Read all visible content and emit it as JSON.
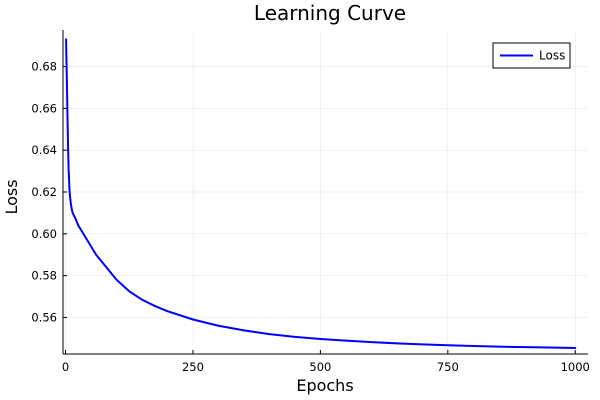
{
  "chart_data": {
    "type": "line",
    "title": "Learning Curve",
    "xlabel": "Epochs",
    "ylabel": "Loss",
    "xlim": [
      -5,
      1025
    ],
    "ylim": [
      0.5425,
      0.6975
    ],
    "xticks": [
      0,
      250,
      500,
      750,
      1000
    ],
    "xtick_labels": [
      "0",
      "250",
      "500",
      "750",
      "1000"
    ],
    "yticks": [
      0.56,
      0.58,
      0.6,
      0.62,
      0.64,
      0.66,
      0.68
    ],
    "ytick_labels": [
      "0.56",
      "0.58",
      "0.60",
      "0.62",
      "0.64",
      "0.66",
      "0.68"
    ],
    "grid": true,
    "legend": "top-right",
    "series": [
      {
        "name": "Loss",
        "color": "#0000ff",
        "x": [
          1,
          2,
          3,
          4,
          5,
          6,
          7,
          8,
          10,
          12,
          14,
          16,
          18,
          20,
          25,
          30,
          40,
          50,
          60,
          70,
          80,
          90,
          100,
          125,
          150,
          175,
          200,
          250,
          300,
          350,
          400,
          450,
          500,
          550,
          600,
          650,
          700,
          750,
          800,
          850,
          900,
          950,
          1000
        ],
        "y": [
          0.693,
          0.681,
          0.668,
          0.654,
          0.641,
          0.631,
          0.625,
          0.62,
          0.615,
          0.612,
          0.61,
          0.609,
          0.608,
          0.607,
          0.604,
          0.602,
          0.598,
          0.594,
          0.59,
          0.587,
          0.584,
          0.581,
          0.578,
          0.5725,
          0.5685,
          0.5655,
          0.563,
          0.559,
          0.556,
          0.5538,
          0.552,
          0.5507,
          0.5497,
          0.5489,
          0.5482,
          0.5476,
          0.5471,
          0.5467,
          0.5463,
          0.546,
          0.5458,
          0.5456,
          0.5454
        ]
      }
    ]
  }
}
